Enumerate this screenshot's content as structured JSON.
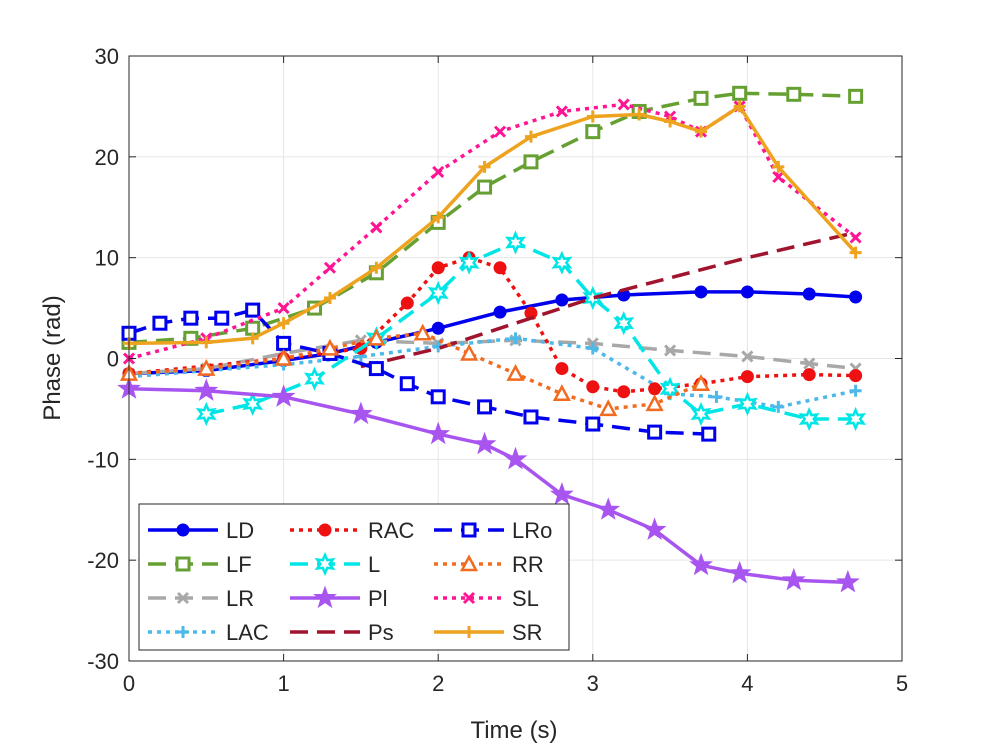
{
  "chart_data": {
    "type": "line",
    "title": "",
    "xlabel": "Time (s)",
    "ylabel": "Phase (rad)",
    "xlim": [
      0,
      5
    ],
    "ylim": [
      -30,
      30
    ],
    "xticks": [
      "0",
      "1",
      "2",
      "3",
      "4",
      "5"
    ],
    "yticks": [
      "-30",
      "-20",
      "-10",
      "0",
      "10",
      "20",
      "30"
    ],
    "grid": true,
    "legend_position": "bottom-left",
    "series": [
      {
        "name": "LD",
        "color": "#0000ee",
        "dash": "solid",
        "marker": "circle-filled",
        "x": [
          0,
          0.5,
          1.0,
          1.3,
          1.6,
          2.0,
          2.4,
          2.8,
          3.2,
          3.7,
          4.0,
          4.4,
          4.7
        ],
        "y": [
          -1.5,
          -1.2,
          -0.2,
          0.5,
          1.6,
          3.0,
          4.6,
          5.8,
          6.3,
          6.6,
          6.6,
          6.4,
          6.1
        ]
      },
      {
        "name": "LF",
        "color": "#66a032",
        "dash": "dashed",
        "marker": "square-open",
        "x": [
          0,
          0.4,
          0.8,
          1.2,
          1.6,
          2.0,
          2.3,
          2.6,
          3.0,
          3.3,
          3.7,
          3.95,
          4.3,
          4.7
        ],
        "y": [
          1.6,
          2.0,
          3.0,
          5.0,
          8.5,
          13.5,
          17.0,
          19.5,
          22.5,
          24.5,
          25.8,
          26.3,
          26.2,
          26.0
        ]
      },
      {
        "name": "LR",
        "color": "#a8a8a8",
        "dash": "dashed",
        "marker": "x",
        "x": [
          0,
          0.5,
          1.0,
          1.5,
          2.0,
          2.5,
          3.0,
          3.5,
          4.0,
          4.4,
          4.7
        ],
        "y": [
          -1.5,
          -1.0,
          0.5,
          1.8,
          1.5,
          1.8,
          1.5,
          0.8,
          0.2,
          -0.5,
          -1.0
        ]
      },
      {
        "name": "LAC",
        "color": "#4db8ea",
        "dash": "dotted",
        "marker": "plus",
        "x": [
          0,
          0.5,
          1.0,
          1.5,
          2.0,
          2.5,
          3.0,
          3.5,
          3.8,
          4.2,
          4.7
        ],
        "y": [
          -1.8,
          -1.2,
          -0.6,
          0.2,
          1.2,
          2.0,
          1.0,
          -3.5,
          -3.8,
          -4.8,
          -3.2
        ]
      },
      {
        "name": "RAC",
        "color": "#ee1111",
        "dash": "dotted",
        "marker": "circle-filled",
        "x": [
          0,
          1.0,
          1.5,
          1.8,
          2.0,
          2.2,
          2.4,
          2.6,
          2.8,
          3.0,
          3.2,
          3.4,
          3.7,
          4.0,
          4.4,
          4.7
        ],
        "y": [
          -1.5,
          0.0,
          1.0,
          5.5,
          9.0,
          10.0,
          9.0,
          4.5,
          -1.0,
          -2.8,
          -3.3,
          -3.0,
          -2.5,
          -1.8,
          -1.6,
          -1.7
        ]
      },
      {
        "name": "L",
        "color": "#00e6e6",
        "dash": "dashed",
        "marker": "hexagram",
        "x": [
          0.5,
          0.8,
          1.2,
          1.6,
          2.0,
          2.2,
          2.5,
          2.8,
          3.0,
          3.2,
          3.5,
          3.7,
          4.0,
          4.4,
          4.7
        ],
        "y": [
          -5.5,
          -4.5,
          -2.0,
          2.0,
          6.5,
          9.5,
          11.5,
          9.5,
          6.0,
          3.5,
          -3.0,
          -5.5,
          -4.5,
          -6.0,
          -6.0
        ]
      },
      {
        "name": "Pl",
        "color": "#a855f0",
        "dash": "solid",
        "marker": "pentagram",
        "x": [
          0,
          0.5,
          1.0,
          1.5,
          2.0,
          2.3,
          2.5,
          2.8,
          3.1,
          3.4,
          3.7,
          3.95,
          4.3,
          4.65
        ],
        "y": [
          -3.0,
          -3.2,
          -3.8,
          -5.5,
          -7.5,
          -8.5,
          -10.0,
          -13.5,
          -15.0,
          -17.0,
          -20.5,
          -21.3,
          -22.0,
          -22.2
        ]
      },
      {
        "name": "Ps",
        "color": "#a0142e",
        "dash": "dashed",
        "marker": "none",
        "x": [
          1.5,
          2.0,
          2.5,
          3.0,
          3.5,
          4.0,
          4.7
        ],
        "y": [
          -0.8,
          1.0,
          3.5,
          6.0,
          8.0,
          10.0,
          12.5
        ]
      },
      {
        "name": "LRo",
        "color": "#0000ee",
        "dash": "dashed",
        "marker": "square-open",
        "x": [
          0,
          0.2,
          0.4,
          0.6,
          0.8,
          1.0,
          1.3,
          1.6,
          1.8,
          2.0,
          2.3,
          2.6,
          3.0,
          3.4,
          3.75
        ],
        "y": [
          2.5,
          3.5,
          4.0,
          4.0,
          4.8,
          1.5,
          0.5,
          -1.0,
          -2.5,
          -3.8,
          -4.8,
          -5.8,
          -6.5,
          -7.3,
          -7.5
        ]
      },
      {
        "name": "RR",
        "color": "#f26b21",
        "dash": "dotted",
        "marker": "triangle-open",
        "x": [
          0,
          0.5,
          1.0,
          1.3,
          1.6,
          1.9,
          2.2,
          2.5,
          2.8,
          3.1,
          3.4,
          3.7
        ],
        "y": [
          -1.5,
          -1.0,
          0.0,
          1.0,
          2.0,
          2.5,
          0.5,
          -1.5,
          -3.5,
          -5.0,
          -4.5,
          -2.5
        ]
      },
      {
        "name": "SL",
        "color": "#ff1493",
        "dash": "dotted",
        "marker": "x",
        "x": [
          0,
          0.5,
          1.0,
          1.3,
          1.6,
          2.0,
          2.4,
          2.8,
          3.2,
          3.5,
          3.7,
          3.95,
          4.2,
          4.7
        ],
        "y": [
          0.0,
          2.0,
          5.0,
          9.0,
          13.0,
          18.5,
          22.5,
          24.5,
          25.2,
          24.0,
          22.5,
          25.0,
          18.0,
          12.0
        ]
      },
      {
        "name": "SR",
        "color": "#eea31f",
        "dash": "solid",
        "marker": "plus",
        "x": [
          0,
          0.5,
          0.8,
          1.0,
          1.3,
          1.6,
          2.0,
          2.3,
          2.6,
          3.0,
          3.3,
          3.5,
          3.7,
          3.95,
          4.2,
          4.7
        ],
        "y": [
          1.5,
          1.6,
          2.0,
          3.5,
          6.0,
          9.0,
          14.0,
          19.0,
          22.0,
          24.0,
          24.2,
          23.5,
          22.5,
          25.0,
          19.0,
          10.5
        ]
      }
    ]
  }
}
